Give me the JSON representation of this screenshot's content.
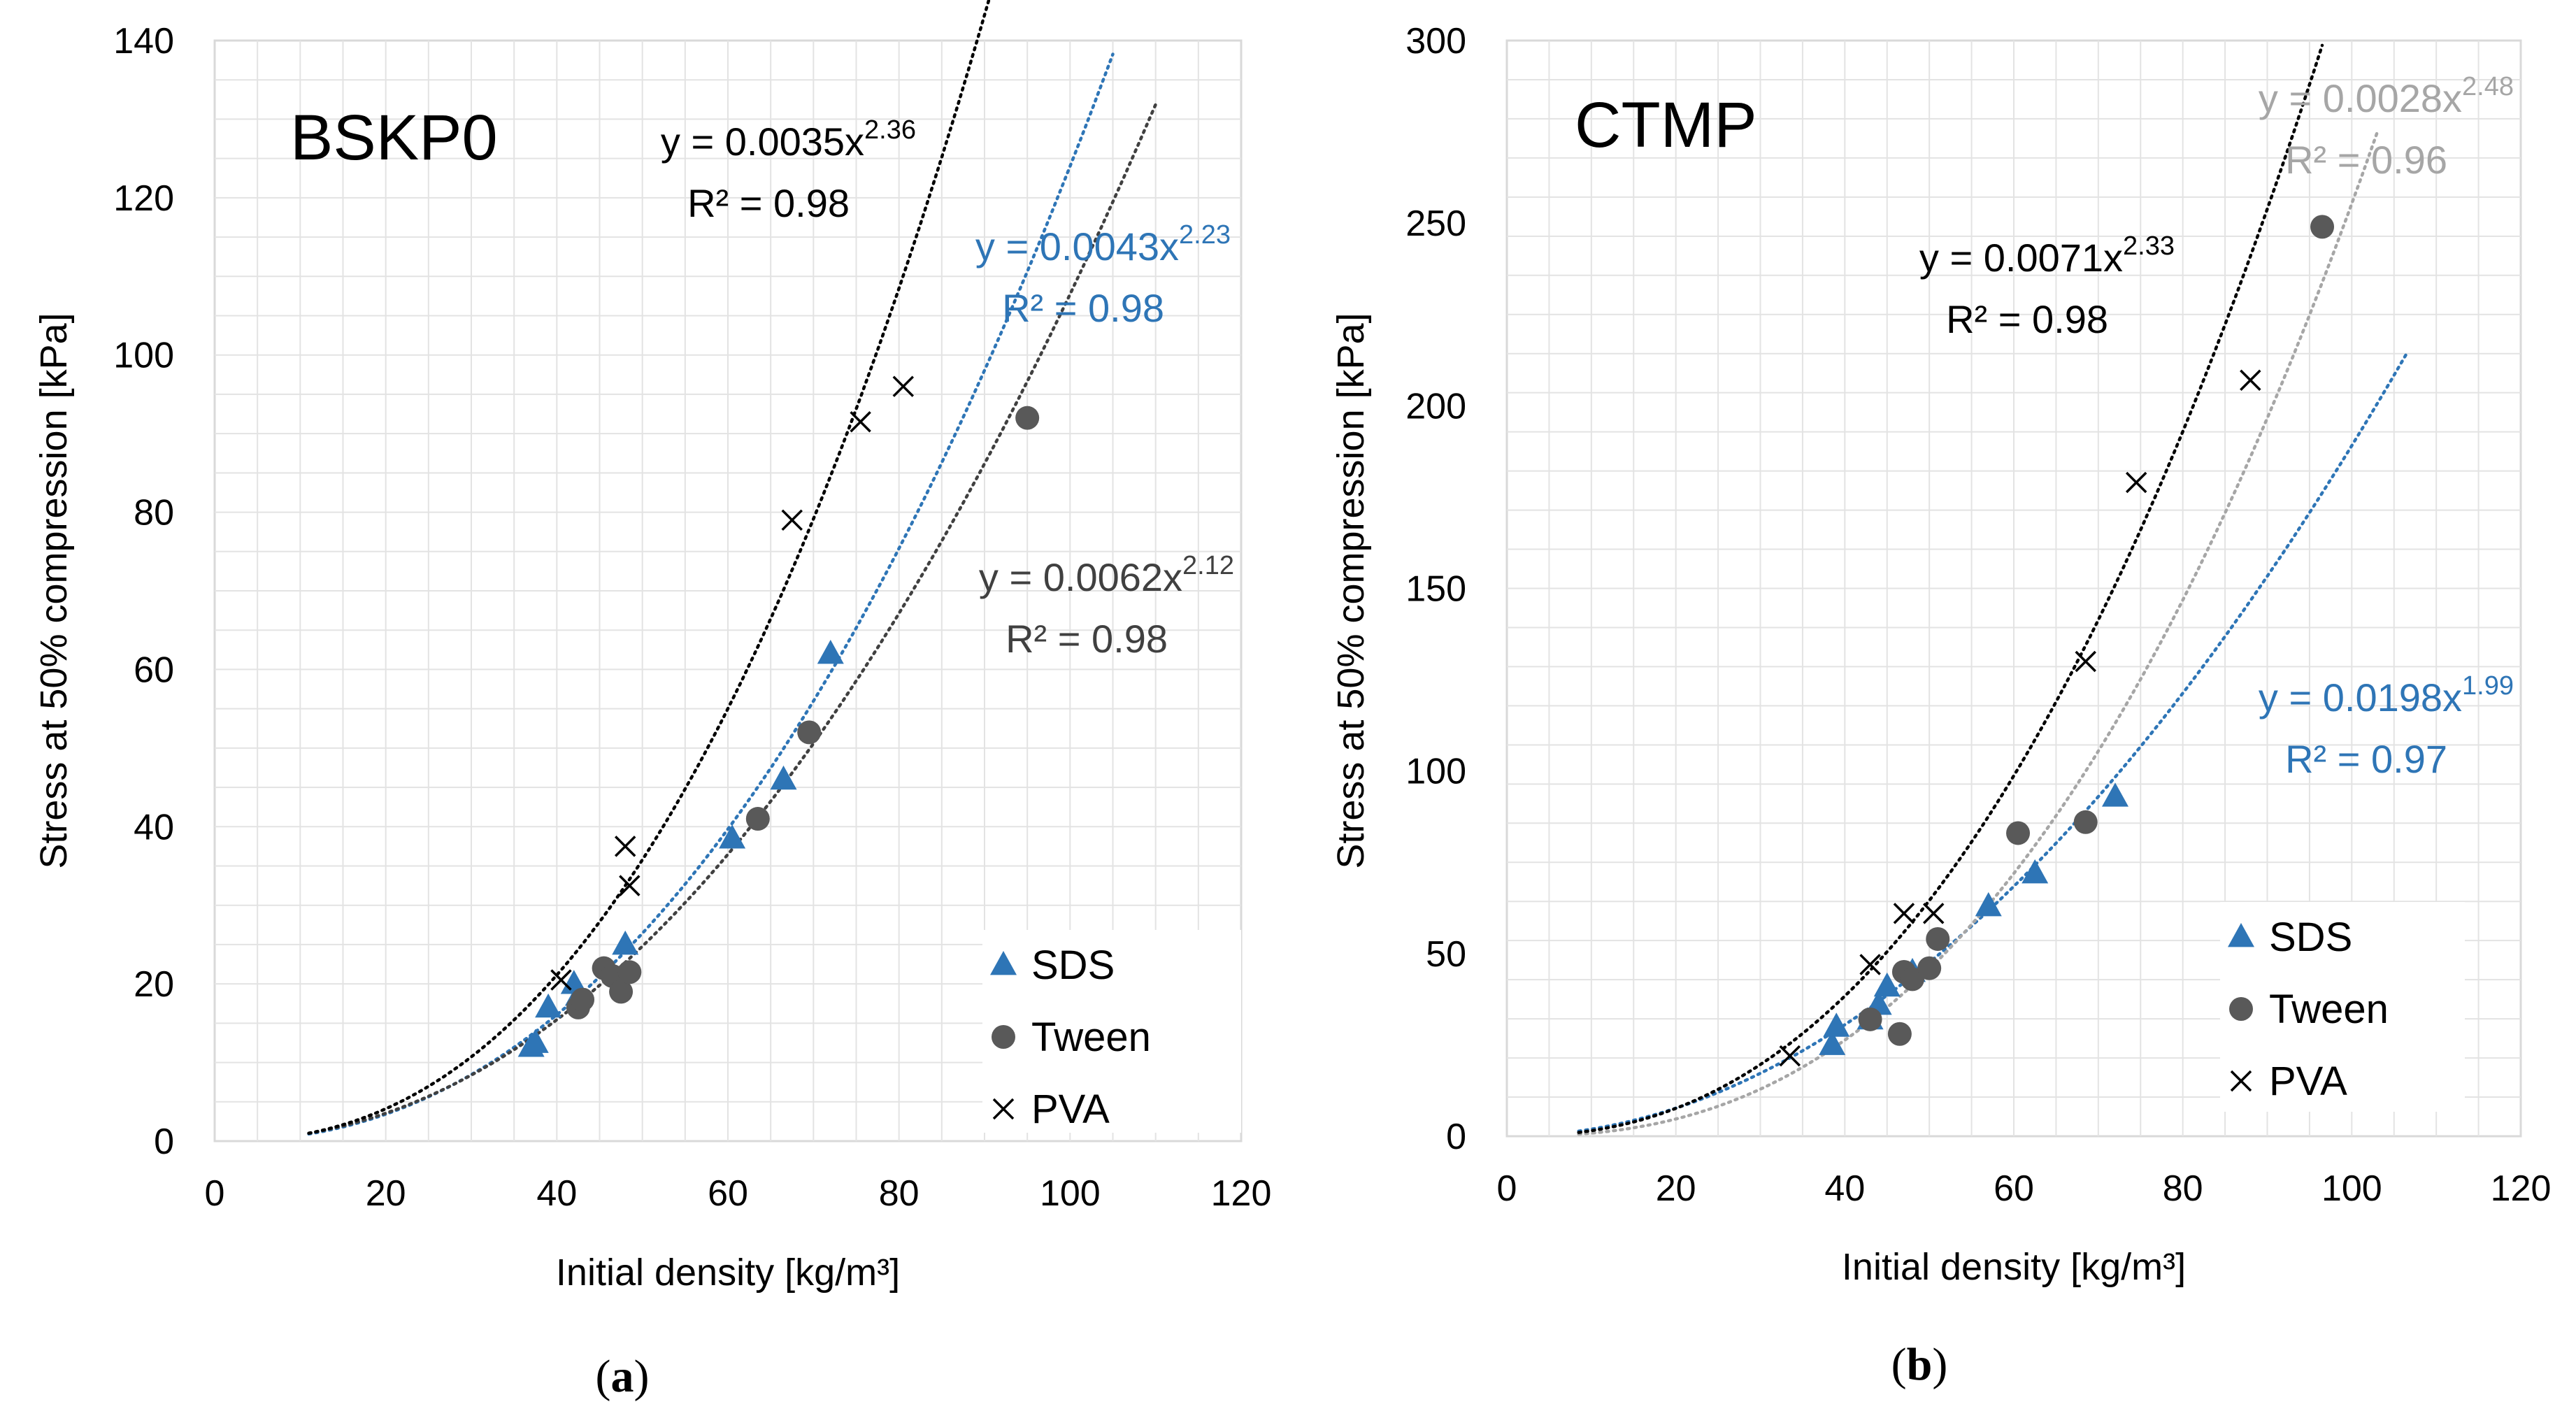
{
  "chart_data": [
    {
      "type": "scatter",
      "panel_label": "a",
      "title": "BSKP0",
      "xlabel": "Initial density [kg/m³]",
      "ylabel": "Stress at 50% compression [kPa]",
      "xlim": [
        0,
        120
      ],
      "ylim": [
        0,
        140
      ],
      "xticks": [
        "0",
        "20",
        "40",
        "60",
        "80",
        "100",
        "120"
      ],
      "yticks": [
        "0",
        "20",
        "40",
        "60",
        "80",
        "100",
        "120",
        "140"
      ],
      "grid": true,
      "legend_position": "bottom-right",
      "series": [
        {
          "name": "SDS",
          "marker": "triangle",
          "color": "#2e75b6",
          "x": [
            37,
            37.5,
            39,
            42,
            42.5,
            48,
            60.5,
            66.5,
            72
          ],
          "y": [
            12,
            12.5,
            17,
            20,
            18.5,
            25,
            38.5,
            46,
            62
          ],
          "fit": {
            "a": 0.0043,
            "b": 2.23,
            "x_range": [
              11,
              105
            ],
            "color": "#2e75b6",
            "eq_main": "y = 0.0043x",
            "eq_exp": "2.23",
            "r2": "R² = 0.98"
          }
        },
        {
          "name": "Tween",
          "marker": "circle",
          "color": "#595959",
          "x": [
            42.5,
            43,
            45.5,
            46.5,
            47.5,
            48.5,
            63.5,
            69.5,
            95
          ],
          "y": [
            17,
            18,
            22,
            21,
            19,
            21.5,
            41,
            52,
            92
          ],
          "fit": {
            "a": 0.0062,
            "b": 2.12,
            "x_range": [
              11,
              110
            ],
            "color": "#404040",
            "eq_main": "y = 0.0062x",
            "eq_exp": "2.12",
            "r2": "R² = 0.98"
          }
        },
        {
          "name": "PVA",
          "marker": "x",
          "color": "#000000",
          "x": [
            40.5,
            48,
            48.5,
            67.5,
            75.5,
            80.5
          ],
          "y": [
            20.5,
            37.5,
            32.5,
            79,
            91.5,
            96
          ],
          "fit": {
            "a": 0.0035,
            "b": 2.36,
            "x_range": [
              11,
              90.5
            ],
            "color": "#000000",
            "eq_main": "y = 0.0035x",
            "eq_exp": "2.36",
            "r2": "R² = 0.98"
          }
        }
      ]
    },
    {
      "type": "scatter",
      "panel_label": "b",
      "title": "CTMP",
      "xlabel": "Initial density [kg/m³]",
      "ylabel": "Stress at 50% compression [kPa]",
      "xlim": [
        0,
        120
      ],
      "ylim": [
        0,
        300
      ],
      "xticks": [
        "0",
        "20",
        "40",
        "60",
        "80",
        "100",
        "120"
      ],
      "yticks": [
        "0",
        "50",
        "100",
        "150",
        "200",
        "250",
        "300"
      ],
      "grid": true,
      "legend_position": "bottom-right",
      "series": [
        {
          "name": "SDS",
          "marker": "triangle",
          "color": "#2e75b6",
          "x": [
            38.5,
            39,
            43,
            44,
            45,
            48,
            57,
            62.5,
            72
          ],
          "y": [
            25,
            30,
            32,
            36,
            41,
            45,
            63,
            72,
            93
          ],
          "fit": {
            "a": 0.0198,
            "b": 1.99,
            "x_range": [
              8.5,
              106.5
            ],
            "color": "#2e75b6",
            "eq_main": "y = 0.0198x",
            "eq_exp": "1.99",
            "r2": "R² = 0.97"
          }
        },
        {
          "name": "Tween",
          "marker": "circle",
          "color": "#595959",
          "x": [
            43,
            46.5,
            47,
            48,
            50,
            51,
            60.5,
            68.5,
            96.5
          ],
          "y": [
            32,
            28,
            45,
            43,
            46,
            54,
            83,
            86,
            249
          ],
          "fit": {
            "a": 0.0028,
            "b": 2.48,
            "x_range": [
              8.5,
              103
            ],
            "color": "#a6a6a6",
            "eq_main": "y = 0.0028x",
            "eq_exp": "2.48",
            "r2": "R² = 0.96"
          }
        },
        {
          "name": "PVA",
          "marker": "x",
          "color": "#000000",
          "x": [
            33.5,
            43,
            47,
            50.5,
            68.5,
            74.5,
            88
          ],
          "y": [
            22,
            47,
            61,
            61,
            130,
            179,
            207
          ],
          "fit": {
            "a": 0.0071,
            "b": 2.33,
            "x_range": [
              8.5,
              96.5
            ],
            "color": "#000000",
            "eq_main": "y = 0.0071x",
            "eq_exp": "2.33",
            "r2": "R² = 0.98"
          }
        }
      ]
    }
  ]
}
